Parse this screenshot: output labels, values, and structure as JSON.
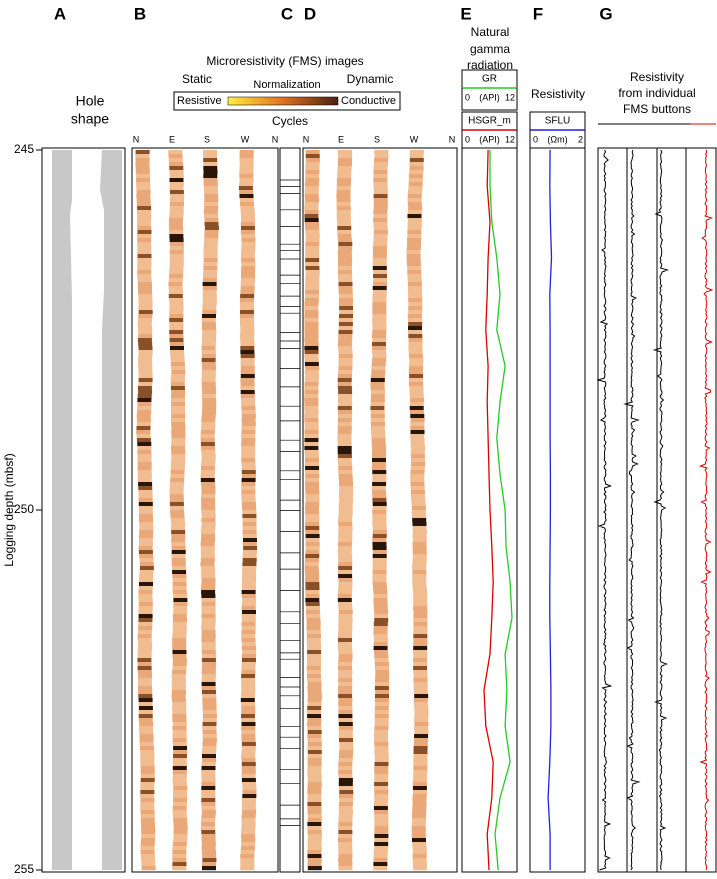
{
  "panel_letters": [
    "A",
    "B",
    "C",
    "D",
    "E",
    "F",
    "G"
  ],
  "hole_title_lines": [
    "Hole",
    "shape"
  ],
  "fms": {
    "title": "Microresistivity (FMS) images",
    "static": "Static",
    "dynamic": "Dynamic",
    "normalization": "Normalization",
    "resistive": "Resistive",
    "conductive": "Conductive",
    "cycles": "Cycles",
    "orientations": [
      "N",
      "E",
      "S",
      "W",
      "N"
    ]
  },
  "fms_buttons": {
    "title_lines": [
      "Resistivity",
      "from individual",
      "FMS buttons"
    ]
  },
  "chart_data": [
    {
      "type": "line",
      "title_lines": [
        "Natural",
        "gamma",
        "radiation"
      ],
      "y_label": "Logging depth (mbsf)",
      "ylim": [
        245,
        255
      ],
      "yticks": [
        245,
        250,
        255
      ],
      "xlim": [
        0,
        12
      ],
      "xticks": [
        0,
        12
      ],
      "x_unit": "(API)",
      "depths": [
        245,
        245.5,
        246,
        246.5,
        247,
        247.5,
        248,
        248.5,
        249,
        249.5,
        250,
        250.5,
        251,
        251.5,
        252,
        252.5,
        253,
        253.5,
        254,
        254.5,
        255
      ],
      "series": [
        {
          "name": "GR",
          "color": "#22cc22",
          "values": [
            6.1,
            6.1,
            6.5,
            7.6,
            8.3,
            7.6,
            9.4,
            8.3,
            7.6,
            8.3,
            9.4,
            9.6,
            10.5,
            10.9,
            9.4,
            9.8,
            9.4,
            10.5,
            8.3,
            7.2,
            7.9
          ]
        },
        {
          "name": "HSGR_m",
          "color": "#dd0000",
          "values": [
            5.7,
            5.5,
            6.1,
            5.7,
            5.5,
            5.2,
            5.7,
            5.5,
            5.7,
            5.9,
            6.1,
            6.5,
            6.8,
            6.5,
            6.1,
            4.8,
            5.2,
            6.8,
            6.5,
            5.5,
            5.9
          ]
        }
      ]
    },
    {
      "type": "line",
      "title": "Resistivity",
      "ylim": [
        245,
        255
      ],
      "xlim": [
        0,
        2
      ],
      "xticks": [
        0,
        2
      ],
      "x_unit": "(Ωm)",
      "depths": [
        245,
        245.5,
        246,
        246.5,
        247,
        247.5,
        248,
        248.5,
        249,
        249.5,
        250,
        250.5,
        251,
        251.5,
        252,
        252.5,
        253,
        253.5,
        254,
        254.5,
        255
      ],
      "series": [
        {
          "name": "SFLU",
          "color": "#2222dd",
          "values": [
            0.73,
            0.72,
            0.74,
            0.78,
            0.72,
            0.73,
            0.73,
            0.73,
            0.73,
            0.74,
            0.74,
            0.73,
            0.72,
            0.72,
            0.74,
            0.76,
            0.76,
            0.72,
            0.66,
            0.73,
            0.73
          ]
        }
      ]
    }
  ]
}
